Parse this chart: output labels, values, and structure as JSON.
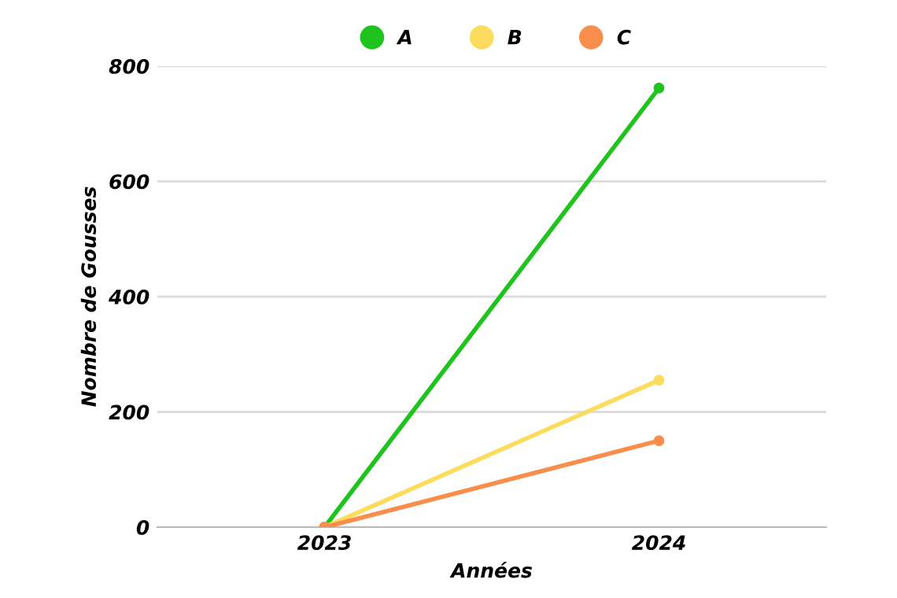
{
  "chart_data": {
    "type": "line",
    "xlabel": "Années",
    "ylabel": "Nombre de Gousses",
    "categories": [
      "2023",
      "2024"
    ],
    "series": [
      {
        "name": "A",
        "color": "#1ec31e",
        "values": [
          0,
          762
        ]
      },
      {
        "name": "B",
        "color": "#fcdc5c",
        "values": [
          0,
          255
        ]
      },
      {
        "name": "C",
        "color": "#f98d4c",
        "values": [
          0,
          150
        ]
      }
    ],
    "ylim": [
      0,
      800
    ],
    "yticks": [
      0,
      200,
      400,
      600,
      800
    ],
    "grid": "y",
    "legend": "top",
    "marker": "circle",
    "line_style": "solid"
  }
}
